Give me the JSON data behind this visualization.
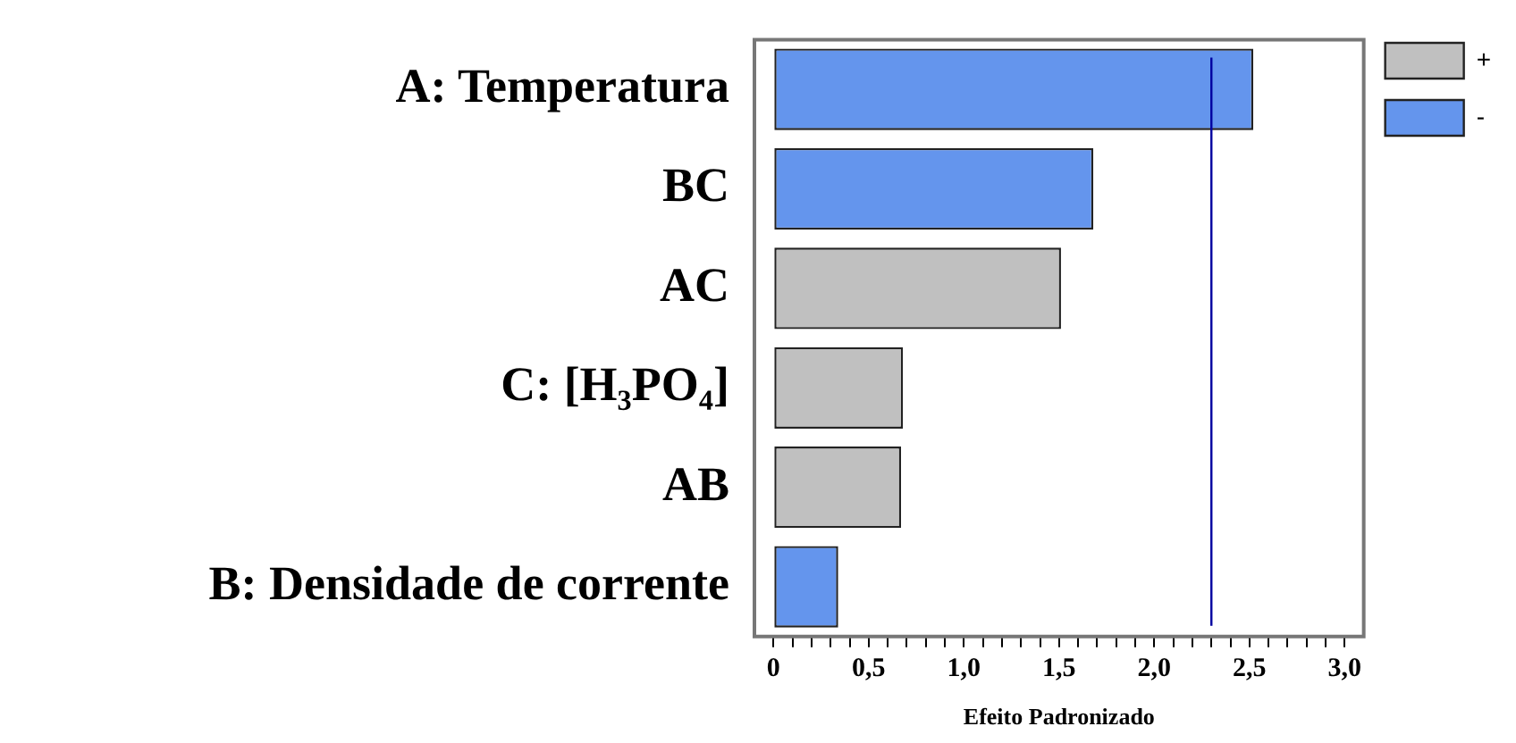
{
  "chart_data": {
    "type": "bar",
    "orientation": "horizontal",
    "stacked": true,
    "xlabel": "Efeito Padronizado",
    "categories": [
      "A: Temperatura",
      "BC",
      "AC",
      "C: [H₃PO₄]",
      "AB",
      "B: Densidade de corrente"
    ],
    "series": [
      {
        "name": "+",
        "color": "#c0c0c0",
        "values": [
          null,
          null,
          1.51,
          0.68,
          0.67,
          null
        ]
      },
      {
        "name": "-",
        "color": "#6495ed",
        "values": [
          2.52,
          1.68,
          null,
          null,
          null,
          0.34
        ]
      }
    ],
    "xlim": [
      -0.1,
      3.1
    ],
    "xticks": [
      {
        "value": 0,
        "label": "0"
      },
      {
        "value": 0.1,
        "label": null
      },
      {
        "value": 0.2,
        "label": null
      },
      {
        "value": 0.3,
        "label": null
      },
      {
        "value": 0.4,
        "label": null
      },
      {
        "value": 0.5,
        "label": "0,5"
      },
      {
        "value": 0.6,
        "label": null
      },
      {
        "value": 0.7,
        "label": null
      },
      {
        "value": 0.8,
        "label": null
      },
      {
        "value": 0.9,
        "label": null
      },
      {
        "value": 1,
        "label": "1,0"
      },
      {
        "value": 1.1,
        "label": null
      },
      {
        "value": 1.2,
        "label": null
      },
      {
        "value": 1.3,
        "label": null
      },
      {
        "value": 1.4,
        "label": null
      },
      {
        "value": 1.5,
        "label": "1,5"
      },
      {
        "value": 1.6,
        "label": null
      },
      {
        "value": 1.7,
        "label": null
      },
      {
        "value": 1.8,
        "label": null
      },
      {
        "value": 1.9,
        "label": null
      },
      {
        "value": 2,
        "label": "2,0"
      },
      {
        "value": 2.1,
        "label": null
      },
      {
        "value": 2.2,
        "label": null
      },
      {
        "value": 2.3,
        "label": null
      },
      {
        "value": 2.4,
        "label": null
      },
      {
        "value": 2.5,
        "label": "2,5"
      },
      {
        "value": 2.6,
        "label": null
      },
      {
        "value": 2.7,
        "label": null
      },
      {
        "value": 2.8,
        "label": null
      },
      {
        "value": 2.9,
        "label": null
      },
      {
        "value": 3,
        "label": "3,0"
      }
    ],
    "ref_lines": [
      {
        "axis": "x",
        "value": 2.3,
        "color": "#0000a0"
      }
    ],
    "grid": false,
    "legend": "top right"
  }
}
